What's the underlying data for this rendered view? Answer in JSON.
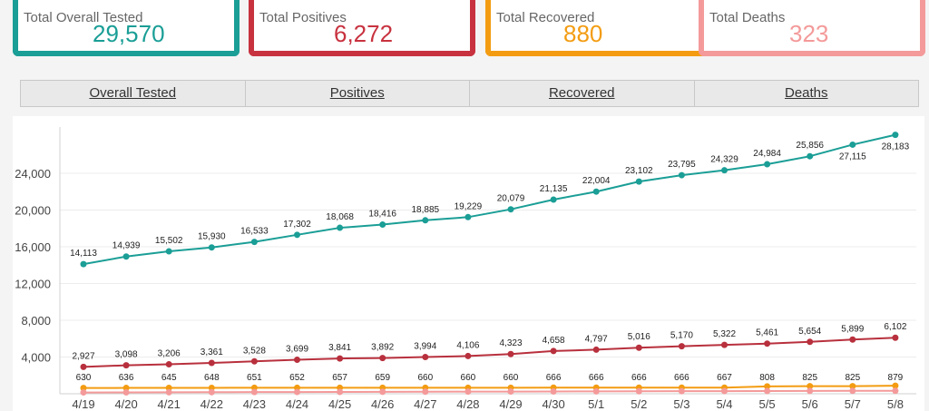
{
  "cards": [
    {
      "label": "Total Overall Tested",
      "value": "29,570",
      "color": "#1a9e96"
    },
    {
      "label": "Total Positives",
      "value": "6,272",
      "color": "#c8323f"
    },
    {
      "label": "Total Recovered",
      "value": "880",
      "color": "#f39c12"
    },
    {
      "label": "Total Deaths",
      "value": "323",
      "color": "#f49a9a"
    }
  ],
  "tabs": [
    "Overall Tested",
    "Positives",
    "Recovered",
    "Deaths"
  ],
  "chart_data": {
    "type": "line",
    "categories": [
      "4/19",
      "4/20",
      "4/21",
      "4/22",
      "4/23",
      "4/24",
      "4/25",
      "4/26",
      "4/27",
      "4/28",
      "4/29",
      "4/30",
      "5/1",
      "5/2",
      "5/3",
      "5/4",
      "5/5",
      "5/6",
      "5/7",
      "5/8"
    ],
    "yticks": [
      "4,000",
      "8,000",
      "12,000",
      "16,000",
      "20,000",
      "24,000"
    ],
    "ylim": [
      0,
      28500
    ],
    "grid": true,
    "series": [
      {
        "color": "#1a9e96",
        "values": [
          14113,
          14939,
          15502,
          15930,
          16533,
          17302,
          18068,
          18416,
          18885,
          19229,
          20079,
          21135,
          22004,
          23102,
          23795,
          24329,
          24984,
          25856,
          27115,
          28183
        ],
        "labels": [
          "14,113",
          "14,939",
          "15,502",
          "15,930",
          "16,533",
          "17,302",
          "18,068",
          "18,416",
          "18,885",
          "19,229",
          "20,079",
          "21,135",
          "22,004",
          "23,102",
          "23,795",
          "24,329",
          "24,984",
          "25,856",
          "27,115",
          "28,183"
        ]
      },
      {
        "color": "#b8303d",
        "values": [
          2927,
          3098,
          3206,
          3361,
          3528,
          3699,
          3841,
          3892,
          3994,
          4106,
          4323,
          4658,
          4797,
          5016,
          5170,
          5322,
          5461,
          5654,
          5899,
          6102
        ],
        "labels": [
          "2,927",
          "3,098",
          "3,206",
          "3,361",
          "3,528",
          "3,699",
          "3,841",
          "3,892",
          "3,994",
          "4,106",
          "4,323",
          "4,658",
          "4,797",
          "5,016",
          "5,170",
          "5,322",
          "5,461",
          "5,654",
          "5,899",
          "6,102"
        ]
      },
      {
        "color": "#f39c12",
        "values": [
          630,
          636,
          645,
          648,
          651,
          652,
          657,
          659,
          660,
          660,
          660,
          666,
          666,
          666,
          666,
          667,
          808,
          825,
          825,
          879
        ],
        "labels": [
          "630",
          "636",
          "645",
          "648",
          "651",
          "652",
          "657",
          "659",
          "660",
          "660",
          "660",
          "666",
          "666",
          "666",
          "666",
          "667",
          "808",
          "825",
          "825",
          "879"
        ]
      },
      {
        "color": "#f49a9a",
        "values": [
          140,
          150,
          160,
          170,
          180,
          190,
          200,
          210,
          220,
          230,
          240,
          250,
          260,
          270,
          280,
          290,
          300,
          305,
          315,
          323
        ],
        "labels": []
      }
    ]
  }
}
